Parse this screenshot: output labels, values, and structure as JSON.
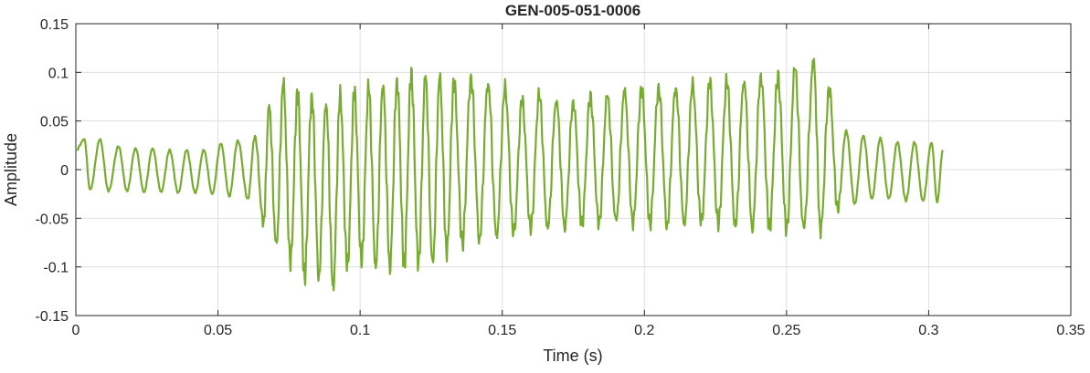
{
  "chart_data": {
    "type": "line",
    "title": "GEN-005-051-0006",
    "xlabel": "Time (s)",
    "ylabel": "Amplitude",
    "xlim": [
      0,
      0.35
    ],
    "ylim": [
      -0.15,
      0.15
    ],
    "xticks": [
      0,
      0.05,
      0.1,
      0.15,
      0.2,
      0.25,
      0.3,
      0.35
    ],
    "xtick_labels": [
      "0",
      "0.05",
      "0.1",
      "0.15",
      "0.2",
      "0.25",
      "0.3",
      "0.35"
    ],
    "yticks": [
      -0.15,
      -0.1,
      -0.05,
      0,
      0.05,
      0.1,
      0.15
    ],
    "ytick_labels": [
      "-0.15",
      "-0.1",
      "-0.05",
      "0",
      "0.05",
      "0.1",
      "0.15"
    ],
    "grid": true,
    "series": [
      {
        "color": "#77ac30",
        "x_range": [
          0,
          0.305
        ],
        "peaks": [
          [
            0.0,
            0.02
          ],
          [
            0.003,
            0.031
          ],
          [
            0.005,
            -0.021
          ],
          [
            0.0085,
            0.031
          ],
          [
            0.0115,
            -0.022
          ],
          [
            0.015,
            0.024
          ],
          [
            0.018,
            -0.022
          ],
          [
            0.021,
            0.022
          ],
          [
            0.024,
            -0.023
          ],
          [
            0.027,
            0.022
          ],
          [
            0.03,
            -0.023
          ],
          [
            0.033,
            0.02
          ],
          [
            0.036,
            -0.024
          ],
          [
            0.039,
            0.02
          ],
          [
            0.042,
            -0.024
          ],
          [
            0.045,
            0.02
          ],
          [
            0.048,
            -0.025
          ],
          [
            0.051,
            0.027
          ],
          [
            0.054,
            -0.027
          ],
          [
            0.057,
            0.03
          ],
          [
            0.0605,
            -0.03
          ],
          [
            0.063,
            0.034
          ],
          [
            0.066,
            -0.055
          ],
          [
            0.068,
            0.064
          ],
          [
            0.0705,
            -0.08
          ],
          [
            0.073,
            0.087
          ],
          [
            0.0755,
            -0.095
          ],
          [
            0.078,
            0.078
          ],
          [
            0.0805,
            -0.11
          ],
          [
            0.083,
            0.076
          ],
          [
            0.0855,
            -0.108
          ],
          [
            0.088,
            0.07
          ],
          [
            0.0905,
            -0.12
          ],
          [
            0.093,
            0.075
          ],
          [
            0.0955,
            -0.1
          ],
          [
            0.098,
            0.078
          ],
          [
            0.1005,
            -0.095
          ],
          [
            0.103,
            0.083
          ],
          [
            0.1055,
            -0.1
          ],
          [
            0.108,
            0.088
          ],
          [
            0.1105,
            -0.098
          ],
          [
            0.113,
            0.092
          ],
          [
            0.1155,
            -0.097
          ],
          [
            0.118,
            0.098
          ],
          [
            0.1205,
            -0.096
          ],
          [
            0.123,
            0.094
          ],
          [
            0.1255,
            -0.1
          ],
          [
            0.128,
            0.093
          ],
          [
            0.1305,
            -0.085
          ],
          [
            0.133,
            0.09
          ],
          [
            0.136,
            -0.075
          ],
          [
            0.139,
            0.095
          ],
          [
            0.142,
            -0.07
          ],
          [
            0.145,
            0.09
          ],
          [
            0.148,
            -0.068
          ],
          [
            0.151,
            0.083
          ],
          [
            0.154,
            -0.066
          ],
          [
            0.157,
            0.07
          ],
          [
            0.16,
            -0.062
          ],
          [
            0.163,
            0.076
          ],
          [
            0.166,
            -0.06
          ],
          [
            0.169,
            0.072
          ],
          [
            0.172,
            -0.058
          ],
          [
            0.175,
            0.07
          ],
          [
            0.178,
            -0.056
          ],
          [
            0.181,
            0.075
          ],
          [
            0.184,
            -0.056
          ],
          [
            0.187,
            0.075
          ],
          [
            0.19,
            -0.055
          ],
          [
            0.193,
            0.08
          ],
          [
            0.196,
            -0.055
          ],
          [
            0.199,
            0.083
          ],
          [
            0.202,
            -0.055
          ],
          [
            0.205,
            0.085
          ],
          [
            0.208,
            -0.056
          ],
          [
            0.211,
            0.085
          ],
          [
            0.214,
            -0.056
          ],
          [
            0.217,
            0.086
          ],
          [
            0.22,
            -0.056
          ],
          [
            0.223,
            0.088
          ],
          [
            0.226,
            -0.057
          ],
          [
            0.229,
            0.09
          ],
          [
            0.232,
            -0.058
          ],
          [
            0.235,
            0.092
          ],
          [
            0.238,
            -0.058
          ],
          [
            0.241,
            0.097
          ],
          [
            0.244,
            -0.06
          ],
          [
            0.247,
            0.095
          ],
          [
            0.25,
            -0.062
          ],
          [
            0.253,
            0.103
          ],
          [
            0.256,
            -0.063
          ],
          [
            0.2595,
            0.11
          ],
          [
            0.262,
            -0.063
          ],
          [
            0.265,
            0.083
          ],
          [
            0.268,
            -0.04
          ],
          [
            0.271,
            0.04
          ],
          [
            0.274,
            -0.035
          ],
          [
            0.277,
            0.035
          ],
          [
            0.28,
            -0.03
          ],
          [
            0.283,
            0.032
          ],
          [
            0.286,
            -0.03
          ],
          [
            0.289,
            0.028
          ],
          [
            0.292,
            -0.032
          ],
          [
            0.295,
            0.028
          ],
          [
            0.298,
            -0.032
          ],
          [
            0.301,
            0.028
          ],
          [
            0.303,
            -0.033
          ],
          [
            0.305,
            0.02
          ]
        ]
      }
    ]
  }
}
